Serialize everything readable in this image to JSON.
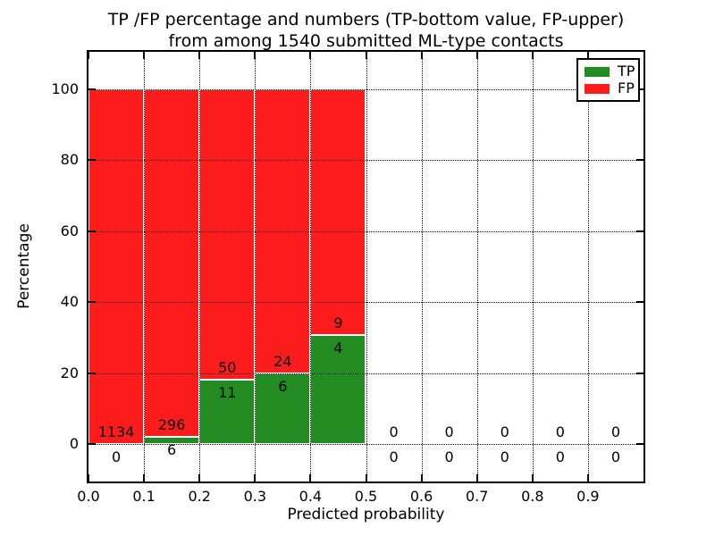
{
  "title": {
    "line1": "TP /FP percentage and numbers (TP-bottom value, FP-upper)",
    "line2": "from among 1540 submitted ML-type contacts"
  },
  "colors": {
    "tp": "#228b22",
    "fp": "#fd1c1c",
    "grid": "#000000",
    "bar_edge": "#ffffff",
    "background": "#ffffff",
    "text": "#000000"
  },
  "chart_data": {
    "type": "bar",
    "stacked": true,
    "unit": "percent",
    "title_line1": "TP /FP percentage and numbers (TP-bottom value, FP-upper)",
    "title_line2": "from among 1540 submitted ML-type contacts",
    "total_submitted_contacts": 1540,
    "xlabel": "Predicted probability",
    "ylabel": "Percentage",
    "xlim": [
      0.0,
      1.0
    ],
    "ylim": [
      -10.6,
      110.6
    ],
    "yticks": [
      0,
      20,
      40,
      60,
      80,
      100
    ],
    "xtick_labels": [
      "0.0",
      "0.1",
      "0.2",
      "0.3",
      "0.4",
      "0.5",
      "0.6",
      "0.7",
      "0.8",
      "0.9"
    ],
    "grid": "dotted-both-axes",
    "legend": {
      "position": "upper-right",
      "entries": [
        {
          "label": "TP",
          "color": "#228b22"
        },
        {
          "label": "FP",
          "color": "#fd1c1c"
        }
      ]
    },
    "annotation_rule": "FP count printed above TP/FP boundary, TP count printed below it",
    "bins": [
      {
        "range": [
          0.0,
          0.1
        ],
        "tp": 0,
        "fp": 1134,
        "tp_percent": 0.0,
        "fp_percent": 100.0
      },
      {
        "range": [
          0.1,
          0.2
        ],
        "tp": 6,
        "fp": 296,
        "tp_percent": 1.99,
        "fp_percent": 98.01
      },
      {
        "range": [
          0.2,
          0.3
        ],
        "tp": 11,
        "fp": 50,
        "tp_percent": 18.03,
        "fp_percent": 81.97
      },
      {
        "range": [
          0.3,
          0.4
        ],
        "tp": 6,
        "fp": 24,
        "tp_percent": 20.0,
        "fp_percent": 80.0
      },
      {
        "range": [
          0.4,
          0.5
        ],
        "tp": 4,
        "fp": 9,
        "tp_percent": 30.77,
        "fp_percent": 69.23
      },
      {
        "range": [
          0.5,
          0.6
        ],
        "tp": 0,
        "fp": 0,
        "tp_percent": 0,
        "fp_percent": 0
      },
      {
        "range": [
          0.6,
          0.7
        ],
        "tp": 0,
        "fp": 0,
        "tp_percent": 0,
        "fp_percent": 0
      },
      {
        "range": [
          0.7,
          0.8
        ],
        "tp": 0,
        "fp": 0,
        "tp_percent": 0,
        "fp_percent": 0
      },
      {
        "range": [
          0.8,
          0.9
        ],
        "tp": 0,
        "fp": 0,
        "tp_percent": 0,
        "fp_percent": 0
      },
      {
        "range": [
          0.9,
          1.0
        ],
        "tp": 0,
        "fp": 0,
        "tp_percent": 0,
        "fp_percent": 0
      }
    ]
  }
}
